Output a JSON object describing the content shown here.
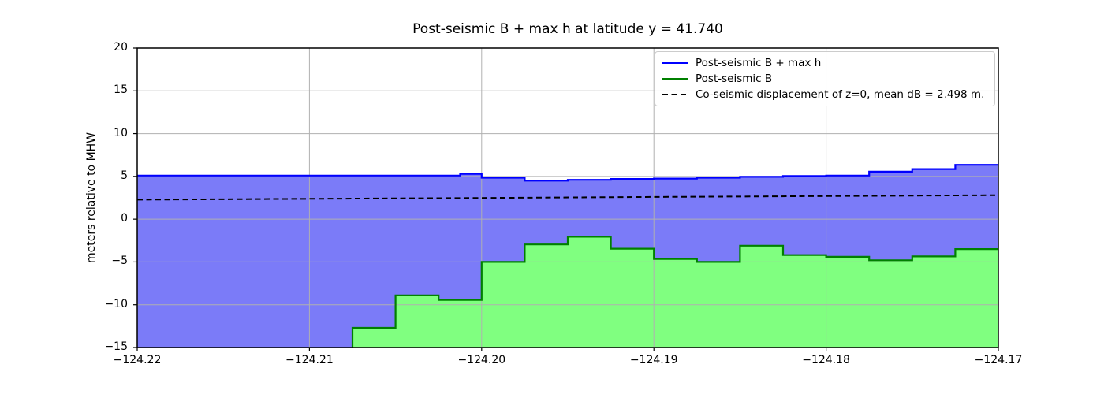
{
  "chart_data": {
    "type": "area",
    "title": "Post-seismic B + max h at latitude y = 41.740",
    "ylabel": "meters relative to MHW",
    "xlim": [
      -124.22,
      -124.17
    ],
    "ylim": [
      -15,
      20
    ],
    "xticks": [
      -124.22,
      -124.21,
      -124.2,
      -124.19,
      -124.18,
      -124.17
    ],
    "xtick_labels": [
      "−124.22",
      "−124.21",
      "−124.20",
      "−124.19",
      "−124.18",
      "−124.17"
    ],
    "yticks": [
      -15,
      -10,
      -5,
      0,
      5,
      10,
      15,
      20
    ],
    "ytick_labels": [
      "−15",
      "−10",
      "−5",
      "0",
      "5",
      "10",
      "15",
      "20"
    ],
    "grid": true,
    "grid_color": "#b0b0b0",
    "axis_color": "#000000",
    "legend_position": "upper right",
    "series": [
      {
        "name": "Post-seismic B + max h",
        "style": "step-area",
        "line_color": "#0000ff",
        "fill_color": "#7b7bf8",
        "x_edges": [
          -124.22,
          -124.20125,
          -124.2,
          -124.1975,
          -124.195,
          -124.1925,
          -124.19,
          -124.1875,
          -124.185,
          -124.1825,
          -124.18,
          -124.1775,
          -124.175,
          -124.1725,
          -124.17
        ],
        "values": [
          5.1,
          5.3,
          4.85,
          4.5,
          4.6,
          4.7,
          4.75,
          4.85,
          4.95,
          5.05,
          5.1,
          5.55,
          5.85,
          6.35
        ]
      },
      {
        "name": "Post-seismic B",
        "style": "step-area",
        "line_color": "#008000",
        "fill_color": "#80ff80",
        "x_edges": [
          -124.22,
          -124.2075,
          -124.205,
          -124.2025,
          -124.2,
          -124.1975,
          -124.195,
          -124.1925,
          -124.19,
          -124.1875,
          -124.185,
          -124.1825,
          -124.18,
          -124.1775,
          -124.175,
          -124.1725,
          -124.17
        ],
        "values": [
          -17,
          -12.7,
          -8.9,
          -9.45,
          -5.0,
          -2.95,
          -2.05,
          -3.45,
          -4.65,
          -5.0,
          -3.1,
          -4.2,
          -4.4,
          -4.8,
          -4.35,
          -3.5
        ]
      },
      {
        "name": "Co-seismic displacement of z=0, mean dB = 2.498 m.",
        "style": "dashed-line",
        "line_color": "#000000",
        "x": [
          -124.22,
          -124.21,
          -124.2,
          -124.19,
          -124.18,
          -124.17
        ],
        "y": [
          2.28,
          2.38,
          2.48,
          2.6,
          2.7,
          2.8
        ]
      }
    ]
  }
}
